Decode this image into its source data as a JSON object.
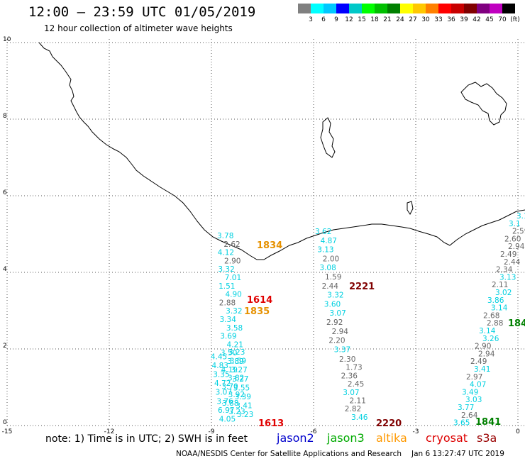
{
  "header": {
    "title": "12:00 – 23:59 UTC 01/05/2019",
    "subtitle": "12 hour collection of altimeter wave heights"
  },
  "legend": {
    "colors": [
      "#808080",
      "#00ffff",
      "#00c8ff",
      "#0000ff",
      "#00c8c8",
      "#00ff00",
      "#00c000",
      "#008000",
      "#ffff00",
      "#ffc800",
      "#ff8000",
      "#ff0000",
      "#c80000",
      "#800000",
      "#800080",
      "#c000c0",
      "#000000"
    ],
    "labels": [
      "3",
      "6",
      "9",
      "12",
      "15",
      "18",
      "21",
      "24",
      "27",
      "30",
      "33",
      "36",
      "39",
      "42",
      "45",
      "70",
      "(ft)"
    ]
  },
  "axes": {
    "x_ticks": [
      "-15",
      "-12",
      "-9",
      "-6",
      "-3",
      "0"
    ],
    "y_ticks": [
      "0",
      "2",
      "4",
      "6",
      "8",
      "10"
    ]
  },
  "tracks": [
    {
      "pass": "1834",
      "pass_color": "#e69100",
      "values": [
        {
          "v": "3.78",
          "c": "#00d0e0"
        },
        {
          "v": "2.62",
          "c": "#666666"
        },
        {
          "v": "4.12",
          "c": "#00d0e0"
        },
        {
          "v": "2.90",
          "c": "#666666"
        },
        {
          "v": "3.32",
          "c": "#00d0e0"
        },
        {
          "v": "7.01",
          "c": "#00d0e0"
        },
        {
          "v": "1.51",
          "c": "#00d0e0"
        },
        {
          "v": "4.90",
          "c": "#00d0e0"
        },
        {
          "v": "2.88",
          "c": "#666666"
        },
        {
          "v": "3.32",
          "c": "#00d0e0"
        },
        {
          "v": "3.34",
          "c": "#00d0e0"
        },
        {
          "v": "3.58",
          "c": "#00d0e0"
        },
        {
          "v": "3.69",
          "c": "#00d0e0"
        },
        {
          "v": "4.21",
          "c": "#00d0e0"
        },
        {
          "v": "3.50",
          "c": "#00d0e0"
        },
        {
          "v": "3.89",
          "c": "#00d0e0"
        },
        {
          "v": "4.19",
          "c": "#00d0e0"
        },
        {
          "v": "3.82",
          "c": "#00d0e0"
        },
        {
          "v": "3.70",
          "c": "#00d0e0"
        },
        {
          "v": "3.92",
          "c": "#00d0e0"
        },
        {
          "v": "3.88",
          "c": "#00d0e0"
        },
        {
          "v": "3.23",
          "c": "#00d0e0"
        }
      ]
    },
    {
      "pass": "1835",
      "pass_color": "#e69100",
      "values": []
    },
    {
      "pass": "1614",
      "pass_color": "#e00000",
      "values": []
    },
    {
      "pass": "1613",
      "pass_color": "#e00000",
      "values": [
        {
          "v": "3.23",
          "c": "#00d0e0"
        },
        {
          "v": "4.45",
          "c": "#00d0e0"
        },
        {
          "v": "3.59",
          "c": "#00d0e0"
        },
        {
          "v": "4.83",
          "c": "#00d0e0"
        },
        {
          "v": "3.27",
          "c": "#00d0e0"
        },
        {
          "v": "3.35",
          "c": "#00d0e0"
        },
        {
          "v": "3.27",
          "c": "#00d0e0"
        },
        {
          "v": "4.72",
          "c": "#00d0e0"
        },
        {
          "v": "3.55",
          "c": "#00d0e0"
        },
        {
          "v": "3.07",
          "c": "#00d0e0"
        },
        {
          "v": "3.39",
          "c": "#00d0e0"
        },
        {
          "v": "3.76",
          "c": "#00d0e0"
        },
        {
          "v": "3.41",
          "c": "#00d0e0"
        },
        {
          "v": "6.97",
          "c": "#00d0e0"
        },
        {
          "v": "3.23",
          "c": "#00d0e0"
        },
        {
          "v": "4.05",
          "c": "#00d0e0"
        }
      ]
    },
    {
      "pass": "2221",
      "pass_color": "#800000",
      "values": [
        {
          "v": "3.62",
          "c": "#00d0e0"
        },
        {
          "v": "4.87",
          "c": "#00d0e0"
        },
        {
          "v": "3.13",
          "c": "#00d0e0"
        },
        {
          "v": "2.00",
          "c": "#666666"
        },
        {
          "v": "3.08",
          "c": "#00d0e0"
        },
        {
          "v": "1.59",
          "c": "#666666"
        },
        {
          "v": "2.44",
          "c": "#666666"
        },
        {
          "v": "3.32",
          "c": "#00d0e0"
        },
        {
          "v": "3.60",
          "c": "#00d0e0"
        },
        {
          "v": "3.07",
          "c": "#00d0e0"
        },
        {
          "v": "2.92",
          "c": "#666666"
        },
        {
          "v": "2.94",
          "c": "#666666"
        },
        {
          "v": "2.20",
          "c": "#666666"
        },
        {
          "v": "3.37",
          "c": "#00d0e0"
        }
      ]
    },
    {
      "pass": "2220",
      "pass_color": "#800000",
      "values": [
        {
          "v": "2.30",
          "c": "#666666"
        },
        {
          "v": "1.73",
          "c": "#666666"
        },
        {
          "v": "2.36",
          "c": "#666666"
        },
        {
          "v": "2.45",
          "c": "#666666"
        },
        {
          "v": "3.07",
          "c": "#00d0e0"
        },
        {
          "v": "2.11",
          "c": "#666666"
        },
        {
          "v": "2.82",
          "c": "#666666"
        },
        {
          "v": "3.46",
          "c": "#00d0e0"
        }
      ]
    },
    {
      "pass": "1841",
      "pass_color": "#008000",
      "values": [
        {
          "v": "3.1",
          "c": "#00d0e0"
        },
        {
          "v": "3.1",
          "c": "#00d0e0"
        },
        {
          "v": "2.59",
          "c": "#666666"
        },
        {
          "v": "2.60",
          "c": "#666666"
        },
        {
          "v": "2.94",
          "c": "#666666"
        },
        {
          "v": "2.49",
          "c": "#666666"
        },
        {
          "v": "2.44",
          "c": "#666666"
        },
        {
          "v": "2.34",
          "c": "#666666"
        },
        {
          "v": "3.13",
          "c": "#00d0e0"
        },
        {
          "v": "2.11",
          "c": "#666666"
        },
        {
          "v": "3.02",
          "c": "#00d0e0"
        },
        {
          "v": "3.86",
          "c": "#00d0e0"
        },
        {
          "v": "3.14",
          "c": "#00d0e0"
        },
        {
          "v": "2.68",
          "c": "#666666"
        },
        {
          "v": "2.88",
          "c": "#666666"
        },
        {
          "v": "3.14",
          "c": "#00d0e0"
        },
        {
          "v": "3.26",
          "c": "#00d0e0"
        },
        {
          "v": "2.90",
          "c": "#666666"
        },
        {
          "v": "2.94",
          "c": "#666666"
        },
        {
          "v": "2.49",
          "c": "#666666"
        },
        {
          "v": "3.41",
          "c": "#00d0e0"
        },
        {
          "v": "2.97",
          "c": "#666666"
        },
        {
          "v": "4.07",
          "c": "#00d0e0"
        },
        {
          "v": "3.49",
          "c": "#00d0e0"
        },
        {
          "v": "3.03",
          "c": "#00d0e0"
        },
        {
          "v": "3.77",
          "c": "#00d0e0"
        },
        {
          "v": "2.64",
          "c": "#666666"
        },
        {
          "v": "3.65",
          "c": "#00d0e0"
        }
      ]
    },
    {
      "pass": "184",
      "pass_color": "#008000",
      "values": []
    }
  ],
  "footer": {
    "note": "note: 1) Time is in UTC; 2) SWH is in feet",
    "satellites": [
      {
        "name": "jason2",
        "color": "#0000cc"
      },
      {
        "name": "jason3",
        "color": "#00aa00"
      },
      {
        "name": "altika",
        "color": "#ff9900"
      },
      {
        "name": "cryosat",
        "color": "#dd0000"
      },
      {
        "name": "s3a",
        "color": "#990000"
      }
    ],
    "credit": "NOAA/NESDIS Center for Satellite Applications and Research",
    "timestamp": "Jan  6 13:27:47 UTC 2019"
  }
}
